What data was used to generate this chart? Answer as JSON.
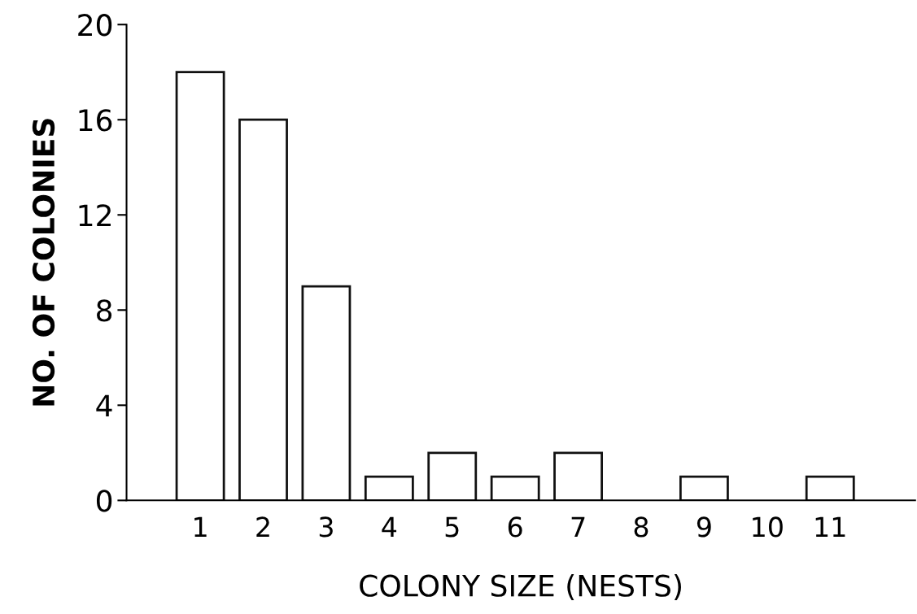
{
  "chart_data": {
    "type": "bar",
    "xlabel": "COLONY SIZE (NESTS)",
    "ylabel": "NO. OF COLONIES",
    "categories": [
      "1",
      "2",
      "3",
      "4",
      "5",
      "6",
      "7",
      "8",
      "9",
      "10",
      "11"
    ],
    "values": [
      18,
      16,
      9,
      1,
      2,
      1,
      2,
      0,
      1,
      0,
      1
    ],
    "color": "#ffffff",
    "ylim": [
      0,
      20
    ],
    "yticks": [
      0,
      4,
      8,
      12,
      16,
      20
    ],
    "grid": false
  }
}
